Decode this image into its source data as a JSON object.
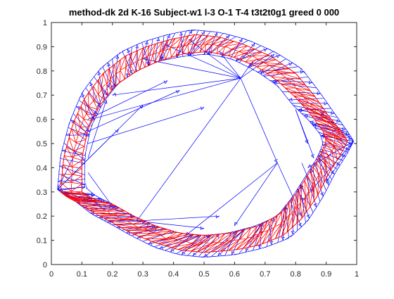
{
  "chart_data": {
    "type": "scatter",
    "title": "method-dk 2d K-16 Subject-w1 l-3 O-1 T-4  t3t2t0g1  greed 0 000",
    "xlabel": "",
    "ylabel": "",
    "xlim": [
      0,
      1
    ],
    "ylim": [
      0,
      1
    ],
    "x_ticks": [
      "0",
      "0.1",
      "0.2",
      "0.3",
      "0.4",
      "0.5",
      "0.6",
      "0.7",
      "0.8",
      "0.9",
      "1"
    ],
    "y_ticks": [
      "0",
      "0.1",
      "0.2",
      "0.3",
      "0.4",
      "0.5",
      "0.6",
      "0.7",
      "0.8",
      "0.9",
      "1"
    ],
    "grid": false,
    "box": true,
    "series": [
      {
        "style": "blue-arrows",
        "color": "#0000ff",
        "outer_ring": [
          [
            0.02,
            0.31
          ],
          [
            0.03,
            0.45
          ],
          [
            0.06,
            0.59
          ],
          [
            0.1,
            0.71
          ],
          [
            0.16,
            0.81
          ],
          [
            0.23,
            0.88
          ],
          [
            0.3,
            0.92
          ],
          [
            0.38,
            0.95
          ],
          [
            0.46,
            0.97
          ],
          [
            0.55,
            0.96
          ],
          [
            0.64,
            0.93
          ],
          [
            0.73,
            0.88
          ],
          [
            0.82,
            0.81
          ],
          [
            0.88,
            0.71
          ],
          [
            0.93,
            0.62
          ],
          [
            0.97,
            0.55
          ],
          [
            0.99,
            0.51
          ],
          [
            0.97,
            0.46
          ],
          [
            0.93,
            0.38
          ],
          [
            0.89,
            0.28
          ],
          [
            0.84,
            0.18
          ],
          [
            0.78,
            0.11
          ],
          [
            0.7,
            0.07
          ],
          [
            0.6,
            0.04
          ],
          [
            0.5,
            0.03
          ],
          [
            0.42,
            0.04
          ],
          [
            0.34,
            0.07
          ],
          [
            0.26,
            0.12
          ],
          [
            0.19,
            0.17
          ],
          [
            0.13,
            0.21
          ],
          [
            0.08,
            0.26
          ],
          [
            0.04,
            0.29
          ]
        ],
        "inner_ring": [
          [
            0.11,
            0.32
          ],
          [
            0.11,
            0.45
          ],
          [
            0.13,
            0.57
          ],
          [
            0.17,
            0.67
          ],
          [
            0.22,
            0.75
          ],
          [
            0.28,
            0.8
          ],
          [
            0.35,
            0.84
          ],
          [
            0.43,
            0.86
          ],
          [
            0.51,
            0.87
          ],
          [
            0.59,
            0.85
          ],
          [
            0.67,
            0.8
          ],
          [
            0.74,
            0.74
          ],
          [
            0.79,
            0.66
          ],
          [
            0.84,
            0.6
          ],
          [
            0.88,
            0.54
          ],
          [
            0.89,
            0.5
          ],
          [
            0.87,
            0.44
          ],
          [
            0.83,
            0.36
          ],
          [
            0.79,
            0.28
          ],
          [
            0.74,
            0.2
          ],
          [
            0.67,
            0.16
          ],
          [
            0.58,
            0.13
          ],
          [
            0.5,
            0.12
          ],
          [
            0.42,
            0.13
          ],
          [
            0.34,
            0.16
          ],
          [
            0.27,
            0.2
          ],
          [
            0.2,
            0.25
          ],
          [
            0.15,
            0.28
          ]
        ],
        "long_arrows": [
          [
            [
              0.62,
              0.77
            ],
            [
              0.37,
              0.91
            ]
          ],
          [
            [
              0.62,
              0.77
            ],
            [
              0.45,
              0.93
            ]
          ],
          [
            [
              0.62,
              0.77
            ],
            [
              0.2,
              0.7
            ]
          ],
          [
            [
              0.62,
              0.77
            ],
            [
              0.13,
              0.6
            ]
          ],
          [
            [
              0.62,
              0.77
            ],
            [
              0.74,
              0.42
            ]
          ],
          [
            [
              0.62,
              0.77
            ],
            [
              0.28,
              0.18
            ]
          ],
          [
            [
              0.62,
              0.77
            ],
            [
              0.73,
              0.87
            ]
          ],
          [
            [
              0.62,
              0.77
            ],
            [
              0.3,
              0.85
            ]
          ],
          [
            [
              0.02,
              0.31
            ],
            [
              0.3,
              0.66
            ]
          ],
          [
            [
              0.02,
              0.31
            ],
            [
              0.22,
              0.56
            ]
          ],
          [
            [
              0.02,
              0.31
            ],
            [
              0.27,
              0.2
            ]
          ],
          [
            [
              0.02,
              0.31
            ],
            [
              0.19,
              0.75
            ]
          ],
          [
            [
              0.12,
              0.55
            ],
            [
              0.42,
              0.72
            ]
          ],
          [
            [
              0.12,
              0.5
            ],
            [
              0.5,
              0.65
            ]
          ],
          [
            [
              0.12,
              0.6
            ],
            [
              0.38,
              0.76
            ]
          ],
          [
            [
              0.99,
              0.51
            ],
            [
              0.82,
              0.26
            ]
          ],
          [
            [
              0.99,
              0.51
            ],
            [
              0.84,
              0.4
            ]
          ],
          [
            [
              0.99,
              0.51
            ],
            [
              0.88,
              0.63
            ]
          ],
          [
            [
              0.99,
              0.51
            ],
            [
              0.9,
              0.34
            ]
          ],
          [
            [
              0.74,
              0.42
            ],
            [
              0.82,
              0.2
            ]
          ],
          [
            [
              0.74,
              0.42
            ],
            [
              0.44,
              0.12
            ]
          ],
          [
            [
              0.74,
              0.42
            ],
            [
              0.6,
              0.16
            ]
          ],
          [
            [
              0.28,
              0.18
            ],
            [
              0.55,
              0.2
            ]
          ],
          [
            [
              0.28,
              0.18
            ],
            [
              0.5,
              0.15
            ]
          ],
          [
            [
              0.62,
              0.77
            ],
            [
              0.55,
              0.88
            ]
          ],
          [
            [
              0.62,
              0.77
            ],
            [
              0.66,
              0.84
            ]
          ],
          [
            [
              0.8,
              0.64
            ],
            [
              0.84,
              0.5
            ]
          ],
          [
            [
              0.8,
              0.64
            ],
            [
              0.86,
              0.44
            ]
          ],
          [
            [
              0.82,
              0.42
            ],
            [
              0.86,
              0.3
            ]
          ],
          [
            [
              0.1,
              0.3
            ],
            [
              0.18,
              0.22
            ]
          ],
          [
            [
              0.12,
              0.44
            ],
            [
              0.18,
              0.68
            ]
          ],
          [
            [
              0.12,
              0.38
            ],
            [
              0.2,
              0.24
            ]
          ]
        ]
      },
      {
        "style": "red-mesh",
        "color": "#ff0000",
        "outer_ring": [
          [
            0.03,
            0.3
          ],
          [
            0.04,
            0.44
          ],
          [
            0.07,
            0.58
          ],
          [
            0.11,
            0.69
          ],
          [
            0.17,
            0.79
          ],
          [
            0.24,
            0.86
          ],
          [
            0.31,
            0.9
          ],
          [
            0.39,
            0.93
          ],
          [
            0.47,
            0.95
          ],
          [
            0.55,
            0.94
          ],
          [
            0.63,
            0.91
          ],
          [
            0.72,
            0.86
          ],
          [
            0.8,
            0.79
          ],
          [
            0.86,
            0.7
          ],
          [
            0.91,
            0.61
          ],
          [
            0.95,
            0.55
          ],
          [
            0.97,
            0.51
          ],
          [
            0.95,
            0.46
          ],
          [
            0.91,
            0.38
          ],
          [
            0.87,
            0.28
          ],
          [
            0.82,
            0.19
          ],
          [
            0.76,
            0.12
          ],
          [
            0.68,
            0.08
          ],
          [
            0.6,
            0.06
          ],
          [
            0.5,
            0.05
          ],
          [
            0.42,
            0.06
          ],
          [
            0.34,
            0.09
          ],
          [
            0.26,
            0.13
          ],
          [
            0.19,
            0.18
          ],
          [
            0.13,
            0.22
          ],
          [
            0.08,
            0.26
          ],
          [
            0.05,
            0.28
          ]
        ],
        "inner_ring": [
          [
            0.1,
            0.3
          ],
          [
            0.1,
            0.44
          ],
          [
            0.12,
            0.56
          ],
          [
            0.16,
            0.66
          ],
          [
            0.21,
            0.74
          ],
          [
            0.28,
            0.8
          ],
          [
            0.35,
            0.84
          ],
          [
            0.43,
            0.87
          ],
          [
            0.51,
            0.88
          ],
          [
            0.59,
            0.86
          ],
          [
            0.67,
            0.82
          ],
          [
            0.74,
            0.76
          ],
          [
            0.8,
            0.69
          ],
          [
            0.85,
            0.62
          ],
          [
            0.89,
            0.55
          ],
          [
            0.9,
            0.51
          ],
          [
            0.88,
            0.45
          ],
          [
            0.84,
            0.37
          ],
          [
            0.8,
            0.29
          ],
          [
            0.75,
            0.21
          ],
          [
            0.68,
            0.16
          ],
          [
            0.59,
            0.13
          ],
          [
            0.5,
            0.12
          ],
          [
            0.42,
            0.13
          ],
          [
            0.34,
            0.16
          ],
          [
            0.27,
            0.2
          ],
          [
            0.2,
            0.25
          ],
          [
            0.14,
            0.27
          ]
        ]
      }
    ]
  }
}
